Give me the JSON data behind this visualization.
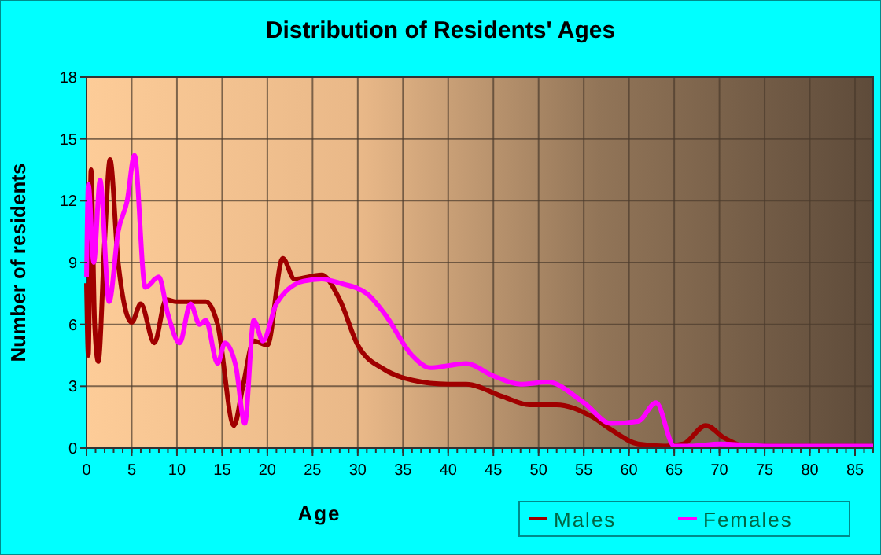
{
  "chart_data": {
    "type": "line",
    "title": "Distribution of Residents' Ages",
    "xlabel": "Age",
    "ylabel": "Number of residents",
    "xlim": [
      0,
      87
    ],
    "xticks": [
      0,
      5,
      10,
      15,
      20,
      25,
      30,
      35,
      40,
      45,
      50,
      55,
      60,
      65,
      70,
      75,
      80,
      85
    ],
    "ylim": [
      0,
      18
    ],
    "yticks": [
      0,
      3,
      6,
      9,
      12,
      15,
      18
    ],
    "grid": true,
    "legend": "bottom right",
    "line_style": "solid",
    "series": [
      {
        "name": "Males",
        "color": "#a00000",
        "x": [
          0,
          0.2,
          0.5,
          0.9,
          1.3,
          2,
          2.6,
          3.5,
          5,
          6,
          7.5,
          8.8,
          10,
          12,
          13.2,
          14.5,
          16.3,
          17.3,
          18.5,
          20,
          21.7,
          23,
          26,
          28,
          30,
          33,
          36,
          40,
          42,
          46,
          49,
          52,
          56,
          58,
          61,
          64,
          66,
          68.5,
          70.5,
          73,
          80,
          87
        ],
        "values": [
          8,
          4.5,
          13.5,
          6,
          4.2,
          10,
          14,
          9,
          6.1,
          7,
          5.1,
          7.2,
          7.1,
          7.1,
          7.1,
          6,
          1.1,
          3,
          5.2,
          5,
          9.2,
          8.2,
          8.4,
          7.2,
          5,
          3.8,
          3.3,
          3.1,
          3.1,
          2.5,
          2.1,
          2.1,
          1.5,
          0.9,
          0.2,
          0.1,
          0.2,
          1.1,
          0.5,
          0.1,
          0.1,
          0.1
        ]
      },
      {
        "name": "Females",
        "color": "#ff00ff",
        "x": [
          0,
          0.2,
          0.8,
          1.5,
          2.5,
          3.5,
          4.5,
          5.3,
          6.5,
          8,
          9,
          10.3,
          11.5,
          12.5,
          13.2,
          14.5,
          15.3,
          16.5,
          17.5,
          18.5,
          19.5,
          21,
          24,
          26,
          28,
          31,
          33,
          36,
          38,
          40,
          42,
          45,
          48,
          51,
          55,
          58,
          61,
          63,
          65,
          67,
          70,
          75,
          87
        ],
        "values": [
          8.3,
          12.8,
          9,
          13,
          7.1,
          10.5,
          12,
          14.2,
          7.8,
          8.3,
          6.5,
          5.1,
          7,
          6,
          6.2,
          4.1,
          5.1,
          4,
          1.2,
          6.2,
          5.2,
          7,
          8.1,
          8.2,
          8,
          7.5,
          6.5,
          4.5,
          3.9,
          4,
          4.1,
          3.5,
          3.1,
          3.2,
          2.2,
          1.2,
          1.3,
          2.2,
          0.1,
          0.1,
          0.2,
          0.1,
          0.1
        ]
      }
    ]
  }
}
